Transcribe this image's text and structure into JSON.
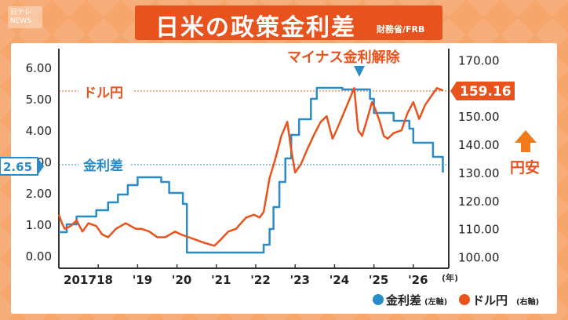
{
  "header": {
    "logo_text": "日テレ NEWS",
    "title": "日米の政策金利差",
    "source": "財務省/FRB"
  },
  "annotations": {
    "left_series_label": "金利差",
    "right_series_label": "ドル円",
    "left_current_value": "2.65",
    "right_current_value": "159.16",
    "event_label": "マイナス金利解除",
    "yen_weak_label": "円安",
    "year_unit": "(年)"
  },
  "legend": [
    {
      "name": "金利差",
      "axis": "(左軸)",
      "color": "#2b8bc6"
    },
    {
      "name": "ドル円",
      "axis": "(右軸)",
      "color": "#e8521c"
    }
  ],
  "colors": {
    "spread": "#2b8bc6",
    "usdjpy": "#e8521c",
    "accent": "#e8521c",
    "arrow": "#f07a1c"
  },
  "chart_data": {
    "type": "line",
    "x_tick_labels": [
      "2017",
      "'18",
      "'19",
      "'20",
      "'21",
      "'22",
      "'23",
      "'24",
      "'25",
      "'26"
    ],
    "x_range": [
      2017.0,
      2026.9
    ],
    "left_axis": {
      "ticks": [
        "0.00",
        "1.00",
        "2.00",
        "3.00",
        "4.00",
        "5.00",
        "6.00"
      ],
      "range": [
        -0.4,
        6.6
      ]
    },
    "right_axis": {
      "ticks": [
        "100.00",
        "110.00",
        "120.00",
        "130.00",
        "140.00",
        "150.00",
        "160.00",
        "170.00"
      ],
      "range": [
        96,
        174
      ]
    },
    "grid": false,
    "series": [
      {
        "name": "金利差",
        "axis": "left",
        "x": [
          2017.0,
          2017.2,
          2017.45,
          2017.95,
          2018.25,
          2018.5,
          2018.75,
          2019.0,
          2019.5,
          2019.6,
          2019.8,
          2020.15,
          2020.25,
          2021.0,
          2021.5,
          2022.0,
          2022.2,
          2022.35,
          2022.45,
          2022.6,
          2022.75,
          2022.9,
          2023.1,
          2023.4,
          2023.55,
          2024.0,
          2024.2,
          2024.7,
          2024.9,
          2025.0,
          2025.5,
          2025.8,
          2025.9,
          2026.0,
          2026.5,
          2026.75
        ],
        "y": [
          0.75,
          1.0,
          1.25,
          1.45,
          1.7,
          1.95,
          2.25,
          2.5,
          2.5,
          2.35,
          2.0,
          1.65,
          0.1,
          0.1,
          0.1,
          0.1,
          0.35,
          0.85,
          1.55,
          2.35,
          3.1,
          3.85,
          4.35,
          5.0,
          5.35,
          5.35,
          5.3,
          5.3,
          5.0,
          4.55,
          4.3,
          4.3,
          4.05,
          3.6,
          3.15,
          2.65
        ]
      },
      {
        "name": "ドル円",
        "axis": "right",
        "x": [
          2017.0,
          2017.08,
          2017.15,
          2017.3,
          2017.45,
          2017.6,
          2017.75,
          2017.95,
          2018.1,
          2018.25,
          2018.45,
          2018.7,
          2018.95,
          2019.1,
          2019.3,
          2019.5,
          2019.7,
          2019.95,
          2020.1,
          2020.3,
          2020.5,
          2020.7,
          2020.95,
          2021.1,
          2021.3,
          2021.5,
          2021.75,
          2021.95,
          2022.1,
          2022.2,
          2022.35,
          2022.5,
          2022.65,
          2022.8,
          2022.9,
          2023.0,
          2023.15,
          2023.3,
          2023.5,
          2023.65,
          2023.8,
          2023.95,
          2024.05,
          2024.2,
          2024.35,
          2024.5,
          2024.6,
          2024.7,
          2024.85,
          2024.95,
          2025.05,
          2025.15,
          2025.25,
          2025.35,
          2025.5,
          2025.7,
          2025.85,
          2026.0,
          2026.15,
          2026.3,
          2026.45,
          2026.6,
          2026.75
        ],
        "y": [
          115,
          112,
          110,
          111,
          113,
          109,
          112,
          111,
          108,
          107,
          110,
          112,
          110,
          110,
          109,
          107,
          107,
          109,
          108,
          107,
          106,
          105,
          104,
          106,
          109,
          110,
          114,
          115,
          114,
          116,
          128,
          135,
          143,
          148,
          138,
          130,
          133,
          138,
          144,
          148,
          150,
          142,
          145,
          150,
          155,
          160,
          145,
          143,
          150,
          155,
          152,
          148,
          143,
          142,
          144,
          145,
          151,
          155,
          149,
          154,
          157,
          160,
          159.16
        ]
      }
    ]
  }
}
